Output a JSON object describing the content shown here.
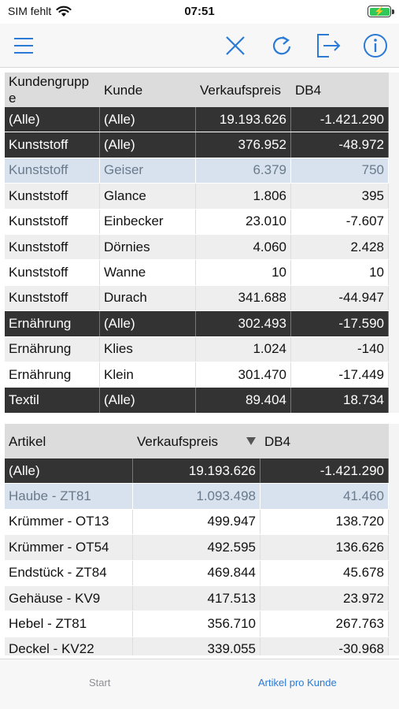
{
  "status_bar": {
    "carrier": "SIM fehlt",
    "time": "07:51",
    "icons": [
      "wifi-icon",
      "battery-charging-icon"
    ],
    "battery_color": "#31c759"
  },
  "toolbar": {
    "icons": [
      "menu-icon",
      "close-icon",
      "refresh-icon",
      "export-icon",
      "info-icon"
    ],
    "accent": "#2a7ad6"
  },
  "table1": {
    "headers": [
      "Kundengruppe",
      "Kunde",
      "Verkaufspreis",
      "DB4"
    ],
    "rows": [
      {
        "group": "(Alle)",
        "kunde": "(Alle)",
        "vk": "19.193.626",
        "db4": "-1.421.290",
        "style": "dark"
      },
      {
        "group": "Kunststoff",
        "kunde": "(Alle)",
        "vk": "376.952",
        "db4": "-48.972",
        "style": "dark"
      },
      {
        "group": "Kunststoff",
        "kunde": "Geiser",
        "vk": "6.379",
        "db4": "750",
        "style": "sel"
      },
      {
        "group": "Kunststoff",
        "kunde": "Glance",
        "vk": "1.806",
        "db4": "395",
        "style": "alt"
      },
      {
        "group": "Kunststoff",
        "kunde": "Einbecker",
        "vk": "23.010",
        "db4": "-7.607",
        "style": "plain"
      },
      {
        "group": "Kunststoff",
        "kunde": "Dörnies",
        "vk": "4.060",
        "db4": "2.428",
        "style": "alt"
      },
      {
        "group": "Kunststoff",
        "kunde": "Wanne",
        "vk": "10",
        "db4": "10",
        "style": "plain"
      },
      {
        "group": "Kunststoff",
        "kunde": "Durach",
        "vk": "341.688",
        "db4": "-44.947",
        "style": "alt"
      },
      {
        "group": "Ernährung",
        "kunde": "(Alle)",
        "vk": "302.493",
        "db4": "-17.590",
        "style": "dark"
      },
      {
        "group": "Ernährung",
        "kunde": "Klies",
        "vk": "1.024",
        "db4": "-140",
        "style": "alt"
      },
      {
        "group": "Ernährung",
        "kunde": "Klein",
        "vk": "301.470",
        "db4": "-17.449",
        "style": "plain"
      },
      {
        "group": "Textil",
        "kunde": "(Alle)",
        "vk": "89.404",
        "db4": "18.734",
        "style": "dark"
      }
    ]
  },
  "table2": {
    "headers": [
      "Artikel",
      "Verkaufspreis",
      "DB4"
    ],
    "sort_icon": "sort-descending-icon",
    "rows": [
      {
        "artikel": "(Alle)",
        "vk": "19.193.626",
        "db4": "-1.421.290",
        "style": "dark"
      },
      {
        "artikel": "Haube - ZT81",
        "vk": "1.093.498",
        "db4": "41.460",
        "style": "sel"
      },
      {
        "artikel": "Krümmer - OT13",
        "vk": "499.947",
        "db4": "138.720",
        "style": "plain"
      },
      {
        "artikel": "Krümmer - OT54",
        "vk": "492.595",
        "db4": "136.626",
        "style": "alt"
      },
      {
        "artikel": "Endstück - ZT84",
        "vk": "469.844",
        "db4": "45.678",
        "style": "plain"
      },
      {
        "artikel": "Gehäuse - KV9",
        "vk": "417.513",
        "db4": "23.972",
        "style": "alt"
      },
      {
        "artikel": "Hebel - ZT81",
        "vk": "356.710",
        "db4": "267.763",
        "style": "plain"
      },
      {
        "artikel": "Deckel - KV22",
        "vk": "339.055",
        "db4": "-30.968",
        "style": "alt"
      }
    ]
  },
  "tabbar": {
    "tabs": [
      {
        "label": "Start",
        "active": false
      },
      {
        "label": "Artikel pro Kunde",
        "active": true
      }
    ],
    "inactive_color": "#8e8e93",
    "active_color": "#2a7ad6"
  }
}
